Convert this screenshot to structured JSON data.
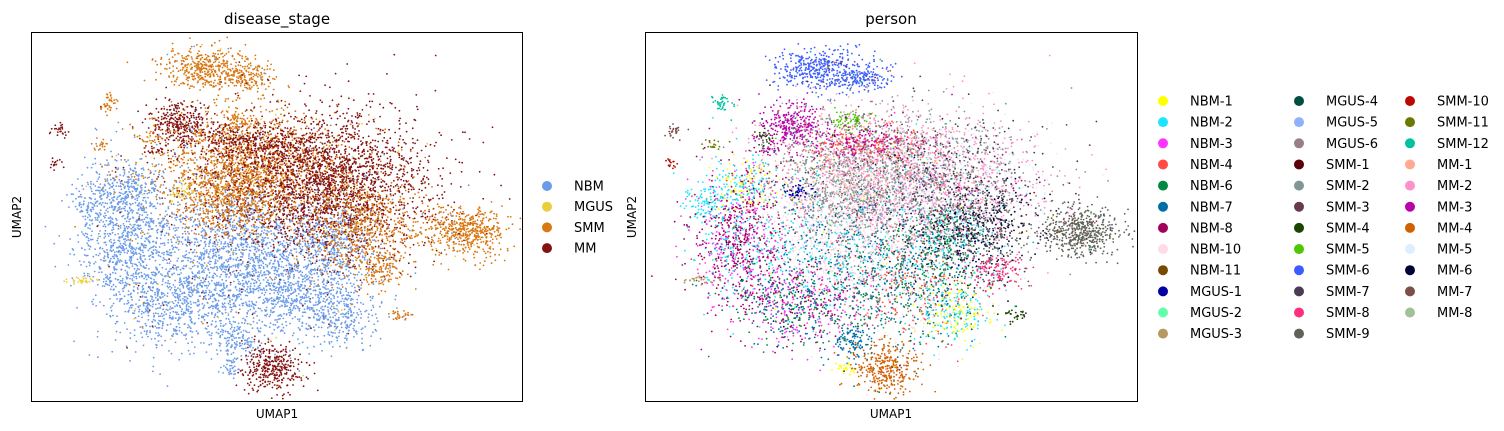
{
  "chart_data": [
    {
      "type": "scatter",
      "title": "disease_stage",
      "xlabel": "UMAP1",
      "ylabel": "UMAP2",
      "grid": false,
      "ticks": false,
      "legend_placement": "right",
      "legend": [
        {
          "name": "NBM",
          "color": "#6b9be8"
        },
        {
          "name": "MGUS",
          "color": "#eccd3c"
        },
        {
          "name": "SMM",
          "color": "#d97712"
        },
        {
          "name": "MM",
          "color": "#841212"
        }
      ]
    },
    {
      "type": "scatter",
      "title": "person",
      "xlabel": "UMAP1",
      "ylabel": "UMAP2",
      "grid": false,
      "ticks": false,
      "legend_placement": "right",
      "legend_columns": 3,
      "legend": [
        {
          "name": "NBM-1",
          "color": "#ffff00"
        },
        {
          "name": "NBM-2",
          "color": "#1ce6ff"
        },
        {
          "name": "NBM-3",
          "color": "#ff34ff"
        },
        {
          "name": "NBM-4",
          "color": "#ff4a46"
        },
        {
          "name": "NBM-6",
          "color": "#008941"
        },
        {
          "name": "NBM-7",
          "color": "#006fa6"
        },
        {
          "name": "NBM-8",
          "color": "#a30059"
        },
        {
          "name": "NBM-10",
          "color": "#ffdbe5"
        },
        {
          "name": "NBM-11",
          "color": "#7a4900"
        },
        {
          "name": "MGUS-1",
          "color": "#0000a6"
        },
        {
          "name": "MGUS-2",
          "color": "#63ffac"
        },
        {
          "name": "MGUS-3",
          "color": "#b79762"
        },
        {
          "name": "MGUS-4",
          "color": "#004d43"
        },
        {
          "name": "MGUS-5",
          "color": "#8fb0ff"
        },
        {
          "name": "MGUS-6",
          "color": "#997d87"
        },
        {
          "name": "SMM-1",
          "color": "#5a0007"
        },
        {
          "name": "SMM-2",
          "color": "#809693"
        },
        {
          "name": "SMM-3",
          "color": "#6a3a4c"
        },
        {
          "name": "SMM-4",
          "color": "#1b4400"
        },
        {
          "name": "SMM-5",
          "color": "#4fc601"
        },
        {
          "name": "SMM-6",
          "color": "#3b5dff"
        },
        {
          "name": "SMM-7",
          "color": "#4a3b53"
        },
        {
          "name": "SMM-8",
          "color": "#ff2f80"
        },
        {
          "name": "SMM-9",
          "color": "#61615a"
        },
        {
          "name": "SMM-10",
          "color": "#ba0900"
        },
        {
          "name": "SMM-11",
          "color": "#6b7900"
        },
        {
          "name": "SMM-12",
          "color": "#00c2a0"
        },
        {
          "name": "MM-1",
          "color": "#ffaa92"
        },
        {
          "name": "MM-2",
          "color": "#ff90c9"
        },
        {
          "name": "MM-3",
          "color": "#b903aa"
        },
        {
          "name": "MM-4",
          "color": "#d16100"
        },
        {
          "name": "MM-5",
          "color": "#ddefff"
        },
        {
          "name": "MM-6",
          "color": "#000035"
        },
        {
          "name": "MM-7",
          "color": "#7b4f4b"
        },
        {
          "name": "MM-8",
          "color": "#a1c299"
        }
      ]
    }
  ]
}
